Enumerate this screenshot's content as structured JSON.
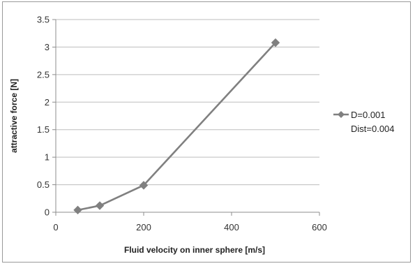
{
  "chart_data": {
    "type": "line",
    "title": "",
    "xlabel": "Fluid velocity on inner sphere [m/s]",
    "ylabel": "attractive force [N]",
    "xlim": [
      0,
      600
    ],
    "ylim": [
      0,
      3.5
    ],
    "xticks": [
      "0",
      "200",
      "400",
      "600"
    ],
    "yticks": [
      "0",
      "0.5",
      "1",
      "1.5",
      "2",
      "2.5",
      "3",
      "3.5"
    ],
    "grid": "horizontal",
    "legend_position": "right",
    "series": [
      {
        "name": "D=0.001 Dist=0.004",
        "legend_lines": [
          "D=0.001",
          "Dist=0.004"
        ],
        "color": "#808080",
        "marker": "diamond",
        "x": [
          50,
          100,
          200,
          500
        ],
        "y": [
          0.04,
          0.12,
          0.49,
          3.08
        ]
      }
    ]
  }
}
